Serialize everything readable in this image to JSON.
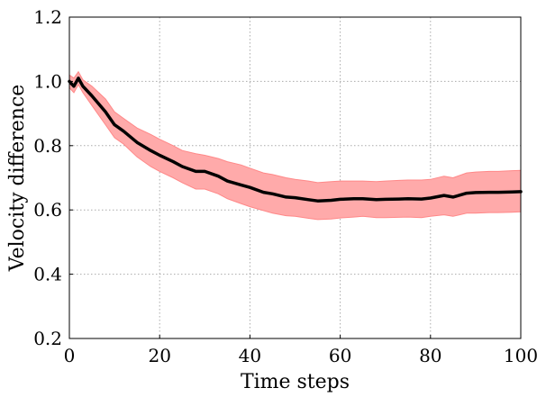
{
  "chart_data": {
    "type": "line",
    "xlabel": "Time steps",
    "ylabel": "Velocity difference",
    "xlim": [
      0,
      100
    ],
    "ylim": [
      0.2,
      1.2
    ],
    "xticks": [
      "0",
      "20",
      "40",
      "60",
      "80",
      "100"
    ],
    "yticks": [
      "0.2",
      "0.4",
      "0.6",
      "0.8",
      "1.0",
      "1.2"
    ],
    "grid": true,
    "colors": {
      "line": "#000000",
      "band_fill": "#ffaaaa",
      "band_edge": "#ff8888"
    },
    "series": [
      {
        "x": [
          0,
          1,
          2,
          3,
          5,
          8,
          10,
          12,
          15,
          18,
          20,
          23,
          25,
          28,
          30,
          33,
          35,
          38,
          40,
          43,
          45,
          48,
          50,
          53,
          55,
          58,
          60,
          63,
          65,
          68,
          70,
          73,
          75,
          78,
          80,
          83,
          85,
          88,
          90,
          93,
          95,
          98,
          100
        ],
        "y": [
          1.0,
          0.985,
          1.01,
          0.985,
          0.955,
          0.905,
          0.865,
          0.845,
          0.81,
          0.785,
          0.77,
          0.75,
          0.735,
          0.72,
          0.72,
          0.705,
          0.69,
          0.678,
          0.67,
          0.655,
          0.65,
          0.64,
          0.638,
          0.632,
          0.628,
          0.63,
          0.633,
          0.635,
          0.635,
          0.632,
          0.633,
          0.634,
          0.635,
          0.634,
          0.637,
          0.645,
          0.64,
          0.652,
          0.654,
          0.655,
          0.655,
          0.656,
          0.657
        ],
        "upper": [
          1.02,
          1.01,
          1.03,
          1.005,
          0.985,
          0.945,
          0.905,
          0.885,
          0.855,
          0.835,
          0.82,
          0.8,
          0.785,
          0.775,
          0.77,
          0.76,
          0.75,
          0.74,
          0.73,
          0.715,
          0.71,
          0.7,
          0.695,
          0.69,
          0.685,
          0.688,
          0.69,
          0.69,
          0.69,
          0.688,
          0.69,
          0.692,
          0.693,
          0.693,
          0.695,
          0.705,
          0.7,
          0.715,
          0.718,
          0.72,
          0.72,
          0.722,
          0.723
        ],
        "lower": [
          0.98,
          0.965,
          0.99,
          0.965,
          0.925,
          0.865,
          0.825,
          0.805,
          0.765,
          0.735,
          0.72,
          0.7,
          0.685,
          0.665,
          0.665,
          0.65,
          0.635,
          0.62,
          0.61,
          0.598,
          0.59,
          0.582,
          0.58,
          0.574,
          0.57,
          0.572,
          0.575,
          0.578,
          0.58,
          0.576,
          0.576,
          0.577,
          0.578,
          0.576,
          0.58,
          0.585,
          0.58,
          0.59,
          0.59,
          0.592,
          0.592,
          0.593,
          0.594
        ]
      }
    ]
  }
}
